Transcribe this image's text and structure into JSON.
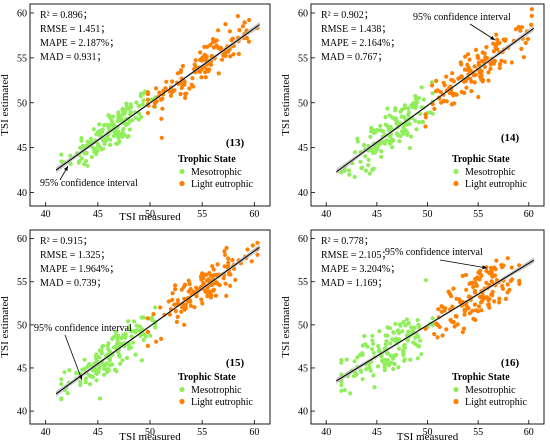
{
  "colors": {
    "mesotrophic": "#90ee5a",
    "light_eutrophic": "#ff7f00",
    "fit_line": "#000000",
    "confidence_band": "#b9b9b9"
  },
  "chart_data": [
    {
      "type": "scatter",
      "panel": "(13)",
      "xlabel": "TSI measured",
      "ylabel": "TSI estimated",
      "xlim": [
        38.5,
        61.5
      ],
      "ylim": [
        38.5,
        61
      ],
      "xticks": [
        "40",
        "45",
        "50",
        "55",
        "60"
      ],
      "yticks": [
        "40",
        "45",
        "50",
        "55",
        "60"
      ],
      "stats": [
        "R² = 0.896；",
        "RMSE = 1.451；",
        "MAPE = 2.187%；",
        "MAD = 0.931；"
      ],
      "ci_label": "95% confidence interval",
      "legend_title": "Trophic State",
      "series": [
        {
          "name": "Mesotrophic",
          "x_range": [
            41.5,
            50.5
          ],
          "center": 46.3,
          "count": 150
        },
        {
          "name": "Light eutrophic",
          "x_range": [
            49.8,
            60.3
          ],
          "center": 55.0,
          "count": 140
        }
      ],
      "fit": {
        "x": [
          41,
          60.5
        ],
        "y": [
          42.5,
          58.7
        ]
      }
    },
    {
      "type": "scatter",
      "panel": "(14)",
      "xlabel": "",
      "ylabel": "TSI estimated",
      "xlim": [
        38.5,
        61.5
      ],
      "ylim": [
        38.5,
        61
      ],
      "xticks": [
        "40",
        "45",
        "50",
        "55",
        "60"
      ],
      "yticks": [
        "40",
        "45",
        "50",
        "55",
        "60"
      ],
      "stats": [
        "R² = 0.902；",
        "RMSE = 1.438；",
        "MAPE = 2.164%；",
        "MAD = 0.767；"
      ],
      "ci_label": "95% confidence interval",
      "legend_title": "Trophic State",
      "series": [
        {
          "name": "Mesotrophic",
          "x_range": [
            41.5,
            50.5
          ],
          "center": 46.3,
          "count": 150
        },
        {
          "name": "Light eutrophic",
          "x_range": [
            49.8,
            60.3
          ],
          "center": 55.0,
          "count": 140
        }
      ],
      "fit": {
        "x": [
          41,
          60.5
        ],
        "y": [
          42.3,
          58.3
        ]
      }
    },
    {
      "type": "scatter",
      "panel": "(15)",
      "xlabel": "TSI measured",
      "ylabel": "TSI estimated",
      "xlim": [
        38.5,
        61.5
      ],
      "ylim": [
        38.5,
        61
      ],
      "xticks": [
        "40",
        "45",
        "50",
        "55",
        "60"
      ],
      "yticks": [
        "40",
        "45",
        "50",
        "55",
        "60"
      ],
      "stats": [
        "R² = 0.915；",
        "RMSE = 1.325；",
        "MAPE = 1.964%；",
        "MAD = 0.739；"
      ],
      "ci_label": "95% confidence interval",
      "legend_title": "Trophic State",
      "series": [
        {
          "name": "Mesotrophic",
          "x_range": [
            41.5,
            50.5
          ],
          "center": 46.3,
          "count": 150
        },
        {
          "name": "Light eutrophic",
          "x_range": [
            49.8,
            60.3
          ],
          "center": 55.0,
          "count": 140
        }
      ],
      "fit": {
        "x": [
          41,
          60.5
        ],
        "y": [
          42.0,
          59.0
        ]
      }
    },
    {
      "type": "scatter",
      "panel": "(16)",
      "xlabel": "TSI measured",
      "ylabel": "TSI estimated",
      "xlim": [
        38.5,
        61.5
      ],
      "ylim": [
        38.5,
        61
      ],
      "xticks": [
        "40",
        "45",
        "50",
        "55",
        "60"
      ],
      "yticks": [
        "40",
        "45",
        "50",
        "55",
        "60"
      ],
      "stats": [
        "R² = 0.778；",
        "RMSE = 2.105；",
        "MAPE = 3.204%；",
        "MAD = 1.169；"
      ],
      "ci_label": "95% confidence interval",
      "legend_title": "Trophic State",
      "series": [
        {
          "name": "Mesotrophic",
          "x_range": [
            41.5,
            50.5
          ],
          "center": 46.3,
          "count": 150
        },
        {
          "name": "Light eutrophic",
          "x_range": [
            49.8,
            60.3
          ],
          "center": 55.0,
          "count": 140
        }
      ],
      "fit": {
        "x": [
          41,
          60.5
        ],
        "y": [
          43.5,
          57.5
        ]
      }
    }
  ]
}
